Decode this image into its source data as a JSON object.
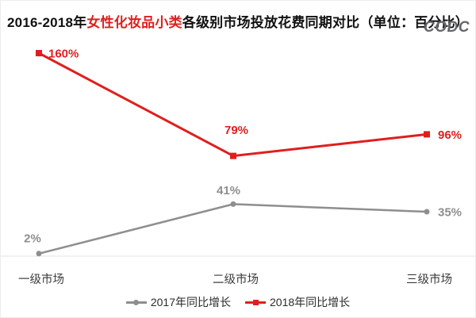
{
  "title": {
    "prefix": "2016-2018年",
    "highlight": "女性化妆品小类",
    "suffix": "各级别市场投放花费同期对比（单位：百分比）",
    "highlight_color": "#e01e1e"
  },
  "logo": "CODC",
  "chart_data": {
    "type": "line",
    "categories": [
      "一级市场",
      "二级市场",
      "三级市场"
    ],
    "series": [
      {
        "name": "2017年同比增长",
        "values": [
          2,
          41,
          35
        ],
        "labels": [
          "2%",
          "41%",
          "35%"
        ],
        "color": "#8e8e8e",
        "marker": "circle",
        "line_width": 2.5,
        "label_offsets": [
          {
            "anchor": "middle",
            "dx": -8,
            "dy": -19
          },
          {
            "anchor": "middle",
            "dx": -6,
            "dy": -17
          },
          {
            "anchor": "start",
            "dx": 14,
            "dy": 1
          }
        ]
      },
      {
        "name": "2018年同比增长",
        "values": [
          160,
          79,
          96
        ],
        "labels": [
          "160%",
          "79%",
          "96%"
        ],
        "color": "#e01e1e",
        "marker": "square",
        "line_width": 3,
        "label_offsets": [
          {
            "anchor": "start",
            "dx": 12,
            "dy": 1
          },
          {
            "anchor": "middle",
            "dx": 4,
            "dy": -32
          },
          {
            "anchor": "start",
            "dx": 14,
            "dy": 1
          }
        ]
      }
    ],
    "ylim": [
      0,
      175
    ],
    "grid": false,
    "axis_line_color": "#e4e4e4",
    "legend_position": "bottom-center"
  }
}
